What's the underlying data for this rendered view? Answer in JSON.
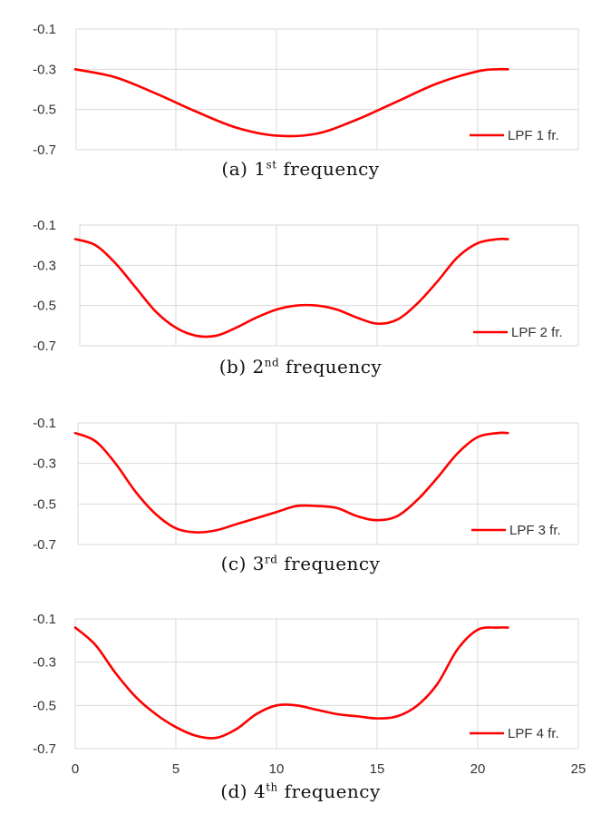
{
  "series_color": "#ff0000",
  "gridline_color": "#d9d9d9",
  "chart_data": [
    {
      "type": "line",
      "legend": "LPF 1 fr.",
      "legend_position": "bottom-right",
      "grid": true,
      "caption": {
        "prefix": "(a) 1",
        "sup": "st",
        "suffix": " frequency"
      },
      "xlim": [
        0,
        25
      ],
      "ylim": [
        -0.7,
        -0.1
      ],
      "yticks": [
        "-0.1",
        "-0.3",
        "-0.5",
        "-0.7"
      ],
      "x": [
        0,
        2,
        4,
        6,
        8,
        10,
        12,
        14,
        16,
        18,
        20,
        21,
        21.5
      ],
      "y": [
        -0.3,
        -0.34,
        -0.42,
        -0.51,
        -0.59,
        -0.63,
        -0.62,
        -0.55,
        -0.46,
        -0.37,
        -0.31,
        -0.3,
        -0.3
      ]
    },
    {
      "type": "line",
      "legend": "LPF 2 fr.",
      "legend_position": "bottom-right",
      "grid": true,
      "caption": {
        "prefix": "(b) 2",
        "sup": "nd",
        "suffix": " frequency"
      },
      "xlim": [
        0,
        25
      ],
      "ylim": [
        -0.7,
        -0.1
      ],
      "yticks": [
        "-0.1",
        "-0.3",
        "-0.5",
        "-0.7"
      ],
      "x": [
        0,
        1,
        2,
        3,
        4,
        5,
        6,
        7,
        8,
        9,
        10,
        11,
        12,
        13,
        14,
        15,
        16,
        17,
        18,
        19,
        20,
        21,
        21.5
      ],
      "y": [
        -0.17,
        -0.2,
        -0.29,
        -0.41,
        -0.53,
        -0.61,
        -0.65,
        -0.65,
        -0.61,
        -0.56,
        -0.52,
        -0.5,
        -0.5,
        -0.52,
        -0.56,
        -0.59,
        -0.57,
        -0.49,
        -0.38,
        -0.26,
        -0.19,
        -0.17,
        -0.17
      ]
    },
    {
      "type": "line",
      "legend": "LPF 3 fr.",
      "legend_position": "bottom-right",
      "grid": true,
      "caption": {
        "prefix": "(c) 3",
        "sup": "rd",
        "suffix": " frequency"
      },
      "xlim": [
        0,
        25
      ],
      "ylim": [
        -0.7,
        -0.1
      ],
      "yticks": [
        "-0.1",
        "-0.3",
        "-0.5",
        "-0.7"
      ],
      "x": [
        0,
        1,
        2,
        3,
        4,
        5,
        6,
        7,
        8,
        9,
        10,
        11,
        12,
        13,
        14,
        15,
        16,
        17,
        18,
        19,
        20,
        21,
        21.5
      ],
      "y": [
        -0.15,
        -0.19,
        -0.3,
        -0.44,
        -0.55,
        -0.62,
        -0.64,
        -0.63,
        -0.6,
        -0.57,
        -0.54,
        -0.51,
        -0.51,
        -0.52,
        -0.56,
        -0.58,
        -0.56,
        -0.48,
        -0.37,
        -0.25,
        -0.17,
        -0.15,
        -0.15
      ]
    },
    {
      "type": "line",
      "legend": "LPF 4 fr.",
      "legend_position": "bottom-right",
      "grid": true,
      "caption": {
        "prefix": "(d) 4",
        "sup": "th",
        "suffix": " frequency"
      },
      "xlim": [
        0,
        25
      ],
      "ylim": [
        -0.7,
        -0.1
      ],
      "yticks": [
        "-0.1",
        "-0.3",
        "-0.5",
        "-0.7"
      ],
      "xticks": [
        "0",
        "5",
        "10",
        "15",
        "20",
        "25"
      ],
      "x": [
        0,
        1,
        2,
        3,
        4,
        5,
        6,
        7,
        8,
        9,
        10,
        11,
        12,
        13,
        14,
        15,
        16,
        17,
        18,
        19,
        20,
        21,
        21.5
      ],
      "y": [
        -0.14,
        -0.22,
        -0.35,
        -0.46,
        -0.54,
        -0.6,
        -0.64,
        -0.65,
        -0.61,
        -0.54,
        -0.5,
        -0.5,
        -0.52,
        -0.54,
        -0.55,
        -0.56,
        -0.55,
        -0.5,
        -0.4,
        -0.24,
        -0.15,
        -0.14,
        -0.14
      ]
    }
  ]
}
